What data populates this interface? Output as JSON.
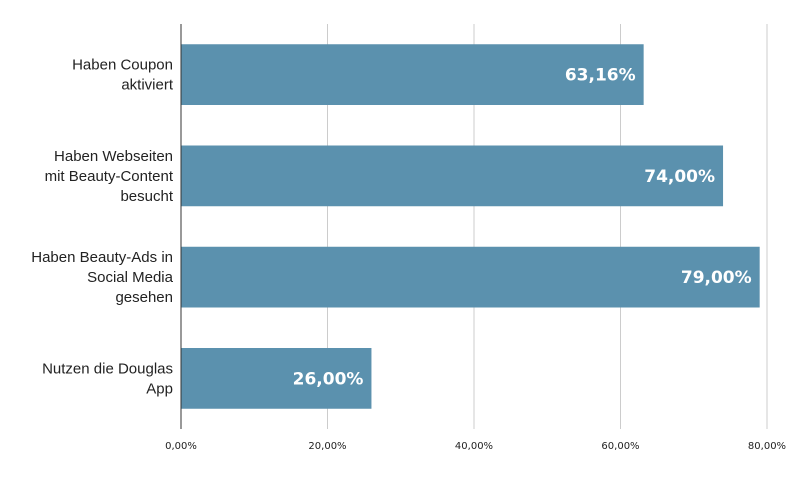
{
  "chart_data": {
    "type": "bar",
    "orientation": "horizontal",
    "categories": [
      [
        "Haben Coupon",
        "aktiviert"
      ],
      [
        "Haben Webseiten",
        "mit Beauty-Content",
        "besucht"
      ],
      [
        "Haben Beauty-Ads in",
        "Social Media",
        "gesehen"
      ],
      [
        "Nutzen die Douglas",
        "App"
      ]
    ],
    "values": [
      63.16,
      74.0,
      79.0,
      26.0
    ],
    "data_labels": [
      "63,16%",
      "74,00%",
      "79,00%",
      "26,00%"
    ],
    "xlim": [
      0,
      80
    ],
    "x_ticks": [
      0,
      20,
      40,
      60,
      80
    ],
    "x_tick_labels": [
      "0,00%",
      "20,00%",
      "40,00%",
      "60,00%",
      "80,00%"
    ],
    "bar_color": "#5b91ae",
    "grid": true,
    "legend": "none",
    "title": "",
    "xlabel": "",
    "ylabel": ""
  }
}
